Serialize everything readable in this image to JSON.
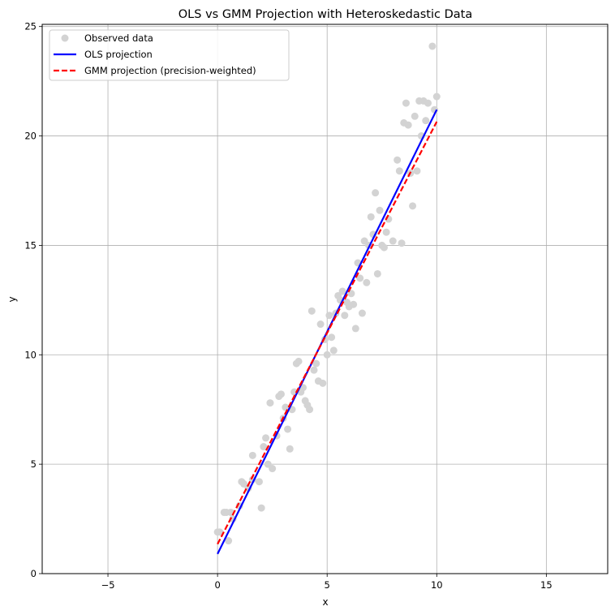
{
  "chart_data": {
    "type": "scatter",
    "title": "OLS vs GMM Projection with Heteroskedastic Data",
    "xlabel": "x",
    "ylabel": "y",
    "xlim": [
      -8,
      17.8
    ],
    "ylim": [
      0,
      25.1
    ],
    "xticks": [
      -5,
      0,
      5,
      10,
      15
    ],
    "yticks": [
      0,
      5,
      10,
      15,
      20,
      25
    ],
    "xtick_labels": [
      "−5",
      "0",
      "5",
      "10",
      "15"
    ],
    "ytick_labels": [
      "0",
      "5",
      "10",
      "15",
      "20",
      "25"
    ],
    "grid": true,
    "legend_position": "top-left",
    "colors": {
      "scatter": "#d3d3d3",
      "ols": "#0000ff",
      "gmm": "#ff0000"
    },
    "series": [
      {
        "name": "Observed data",
        "kind": "scatter",
        "points": [
          [
            0.0,
            1.9
          ],
          [
            0.1,
            1.9
          ],
          [
            0.3,
            2.8
          ],
          [
            0.4,
            2.8
          ],
          [
            0.5,
            1.5
          ],
          [
            0.6,
            2.8
          ],
          [
            0.7,
            2.5
          ],
          [
            1.0,
            3.1
          ],
          [
            1.1,
            4.2
          ],
          [
            1.2,
            4.1
          ],
          [
            1.4,
            3.9
          ],
          [
            1.6,
            4.3
          ],
          [
            1.6,
            5.4
          ],
          [
            1.9,
            4.2
          ],
          [
            2.0,
            3.0
          ],
          [
            2.1,
            5.8
          ],
          [
            2.2,
            6.2
          ],
          [
            2.3,
            5.0
          ],
          [
            2.4,
            7.8
          ],
          [
            2.5,
            4.8
          ],
          [
            2.7,
            6.3
          ],
          [
            2.8,
            8.1
          ],
          [
            2.9,
            8.2
          ],
          [
            3.0,
            7.1
          ],
          [
            3.1,
            7.6
          ],
          [
            3.2,
            6.6
          ],
          [
            3.3,
            5.7
          ],
          [
            3.4,
            7.5
          ],
          [
            3.5,
            8.3
          ],
          [
            3.6,
            9.6
          ],
          [
            3.7,
            9.7
          ],
          [
            3.8,
            8.3
          ],
          [
            3.9,
            8.5
          ],
          [
            4.0,
            7.9
          ],
          [
            4.1,
            7.7
          ],
          [
            4.2,
            7.5
          ],
          [
            4.3,
            12.0
          ],
          [
            4.4,
            9.3
          ],
          [
            4.5,
            9.6
          ],
          [
            4.6,
            8.8
          ],
          [
            4.7,
            11.4
          ],
          [
            4.8,
            8.7
          ],
          [
            4.9,
            10.7
          ],
          [
            5.0,
            10.0
          ],
          [
            5.1,
            11.8
          ],
          [
            5.2,
            10.8
          ],
          [
            5.3,
            10.2
          ],
          [
            5.4,
            11.9
          ],
          [
            5.5,
            12.7
          ],
          [
            5.6,
            12.5
          ],
          [
            5.7,
            12.9
          ],
          [
            5.8,
            11.8
          ],
          [
            5.9,
            12.4
          ],
          [
            6.0,
            12.2
          ],
          [
            6.1,
            12.8
          ],
          [
            6.2,
            12.3
          ],
          [
            6.3,
            11.2
          ],
          [
            6.4,
            14.2
          ],
          [
            6.5,
            13.5
          ],
          [
            6.6,
            11.9
          ],
          [
            6.7,
            15.2
          ],
          [
            6.8,
            13.3
          ],
          [
            6.9,
            15.0
          ],
          [
            7.0,
            16.3
          ],
          [
            7.1,
            15.5
          ],
          [
            7.2,
            17.4
          ],
          [
            7.3,
            13.7
          ],
          [
            7.4,
            16.6
          ],
          [
            7.5,
            15.0
          ],
          [
            7.6,
            14.9
          ],
          [
            7.7,
            15.6
          ],
          [
            7.8,
            16.2
          ],
          [
            8.0,
            15.2
          ],
          [
            8.2,
            18.9
          ],
          [
            8.3,
            18.4
          ],
          [
            8.4,
            15.1
          ],
          [
            8.5,
            20.6
          ],
          [
            8.6,
            21.5
          ],
          [
            8.7,
            20.5
          ],
          [
            8.8,
            18.3
          ],
          [
            8.9,
            16.8
          ],
          [
            9.0,
            20.9
          ],
          [
            9.1,
            18.4
          ],
          [
            9.2,
            21.6
          ],
          [
            9.3,
            20.0
          ],
          [
            9.4,
            21.6
          ],
          [
            9.5,
            20.7
          ],
          [
            9.6,
            21.5
          ],
          [
            9.8,
            24.1
          ],
          [
            9.9,
            21.2
          ],
          [
            10.0,
            21.8
          ]
        ]
      },
      {
        "name": "OLS projection",
        "kind": "line",
        "style": "solid",
        "x": [
          0,
          10
        ],
        "y": [
          0.9,
          21.2
        ]
      },
      {
        "name": "GMM projection (precision-weighted)",
        "kind": "line",
        "style": "dashed",
        "x": [
          0,
          10
        ],
        "y": [
          1.35,
          20.65
        ]
      }
    ]
  }
}
